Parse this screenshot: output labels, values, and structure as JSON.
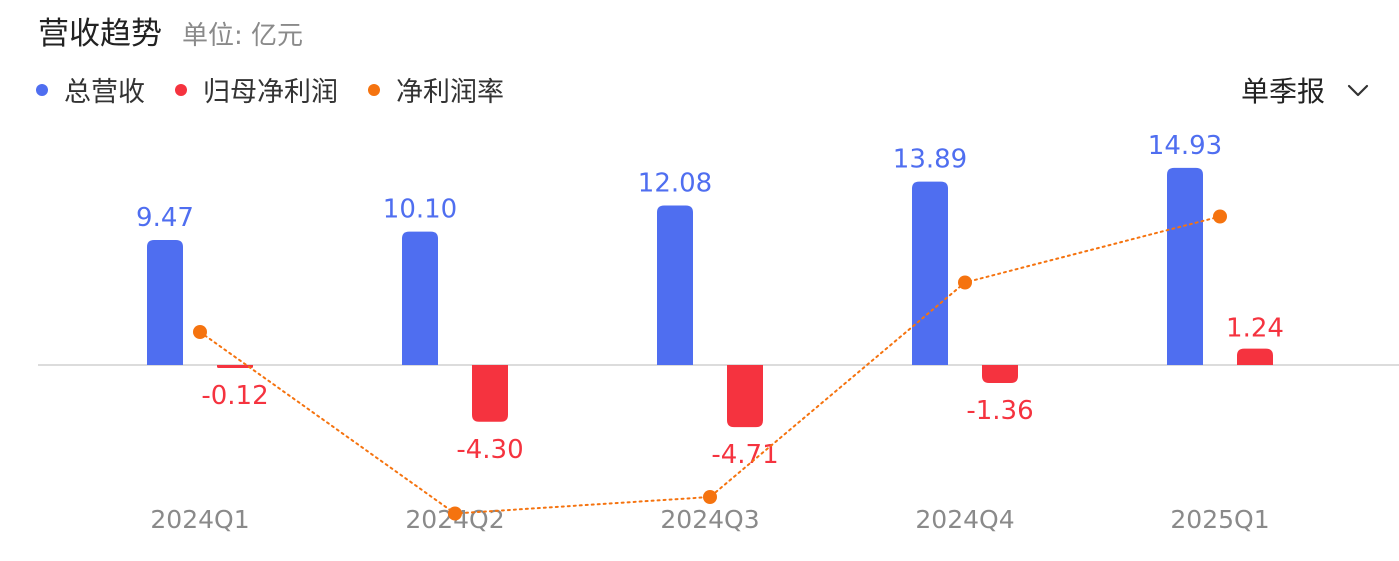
{
  "header": {
    "title": "营收趋势",
    "unit": "单位: 亿元"
  },
  "legend": [
    {
      "label": "总营收",
      "color": "#4f6ef0"
    },
    {
      "label": "归母净利润",
      "color": "#f5333f"
    },
    {
      "label": "净利润率",
      "color": "#f5730f"
    }
  ],
  "period_selector": {
    "label": "单季报",
    "icon": "chevron-down-icon"
  },
  "chart_data": {
    "type": "bar",
    "categories": [
      "2024Q1",
      "2024Q2",
      "2024Q3",
      "2024Q4",
      "2025Q1"
    ],
    "series": [
      {
        "name": "总营收",
        "kind": "bar",
        "color": "#4f6ef0",
        "values": [
          9.47,
          10.1,
          12.08,
          13.89,
          14.93
        ],
        "labels": [
          "9.47",
          "10.10",
          "12.08",
          "13.89",
          "14.93"
        ]
      },
      {
        "name": "归母净利润",
        "kind": "bar",
        "color": "#f5333f",
        "values": [
          -0.12,
          -4.3,
          -4.71,
          -1.36,
          1.24
        ],
        "labels": [
          "-0.12",
          "-4.30",
          "-4.71",
          "-1.36",
          "1.24"
        ]
      },
      {
        "name": "净利润率",
        "kind": "line",
        "color": "#f5730f",
        "line_style": "dotted",
        "values": [
          0.1,
          -0.45,
          -0.4,
          0.25,
          0.45
        ]
      }
    ],
    "grid": false
  }
}
